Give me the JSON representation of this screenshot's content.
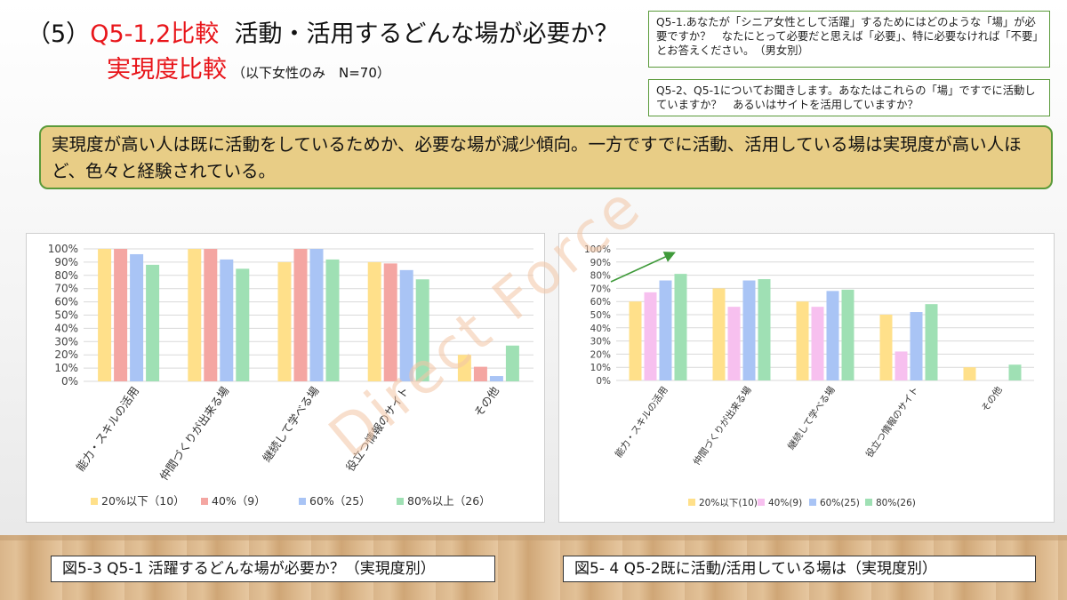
{
  "header": {
    "prefix": "（5）",
    "red_code": "Q5-1,2比較",
    "title_rest": "活動・活用するどんな場が必要か？",
    "subtitle": "実現度比較",
    "sample_note": "（以下女性のみ　N=70）"
  },
  "questions": {
    "q1": "Q5-1.あなたが「シニア女性として活躍」するためにはどのような「場」が必要ですか？　なたにとって必要だと思えば「必要」、特に必要なければ「不要」とお答えください。　（男女別）",
    "q2": "Q5-2、Q5-1についてお聞きします。あなたはこれらの「場」ですでに活動していますか？　あるいはサイトを活用していますか？"
  },
  "summary": "実現度が高い人は既に活動をしているためか、必要な場が減少傾向。一方ですでに活動、活用している場は実現度が高い人ほど、色々と経験されている。",
  "watermark": "Direct Force",
  "captions": {
    "left": "図5-3 Q5-1 活躍するどんな場が必要か？（実現度別）",
    "right": "図5- 4  Q5-2既に活動/活用している場は（実現度別）"
  },
  "colors": {
    "s1": "#ffe08a",
    "s2": "#f4a6a2",
    "s3": "#a9c4f5",
    "s4": "#9fe0b4",
    "s2b": "#f7c0ef",
    "arrow": "#3f9a3a"
  },
  "chart_data": [
    {
      "type": "bar",
      "categories": [
        "能力・スキルの活用",
        "仲間づくりが出来る場",
        "継続して学べる場",
        "役立つ情報のサイト",
        "その他"
      ],
      "ylim": [
        0,
        100
      ],
      "yticks": [
        "0%",
        "10%",
        "20%",
        "30%",
        "40%",
        "50%",
        "60%",
        "70%",
        "80%",
        "90%",
        "100%"
      ],
      "series": [
        {
          "name": "20%以下（10）",
          "values": [
            100,
            100,
            90,
            90,
            20
          ]
        },
        {
          "name": "40%（9）",
          "values": [
            100,
            100,
            100,
            89,
            11
          ]
        },
        {
          "name": "60%（25）",
          "values": [
            96,
            92,
            100,
            84,
            4
          ]
        },
        {
          "name": "80%以上（26）",
          "values": [
            88,
            85,
            92,
            77,
            27
          ]
        }
      ],
      "legend": "bottom",
      "grid": true
    },
    {
      "type": "bar",
      "categories": [
        "能力・スキルの活用",
        "仲間づくりが出来る場",
        "継続して学べる場",
        "役立つ情報のサイト",
        "その他"
      ],
      "ylim": [
        0,
        100
      ],
      "yticks": [
        "0%",
        "10%",
        "20%",
        "30%",
        "40%",
        "50%",
        "60%",
        "70%",
        "80%",
        "90%",
        "100%"
      ],
      "series": [
        {
          "name": "20%以下(10)",
          "values": [
            60,
            70,
            60,
            50,
            10
          ]
        },
        {
          "name": "40%(9)",
          "values": [
            67,
            56,
            56,
            22,
            0
          ]
        },
        {
          "name": "60%(25)",
          "values": [
            76,
            76,
            68,
            52,
            0
          ]
        },
        {
          "name": "80%(26)",
          "values": [
            81,
            77,
            69,
            58,
            12
          ]
        }
      ],
      "legend": "bottom",
      "grid": true
    }
  ]
}
